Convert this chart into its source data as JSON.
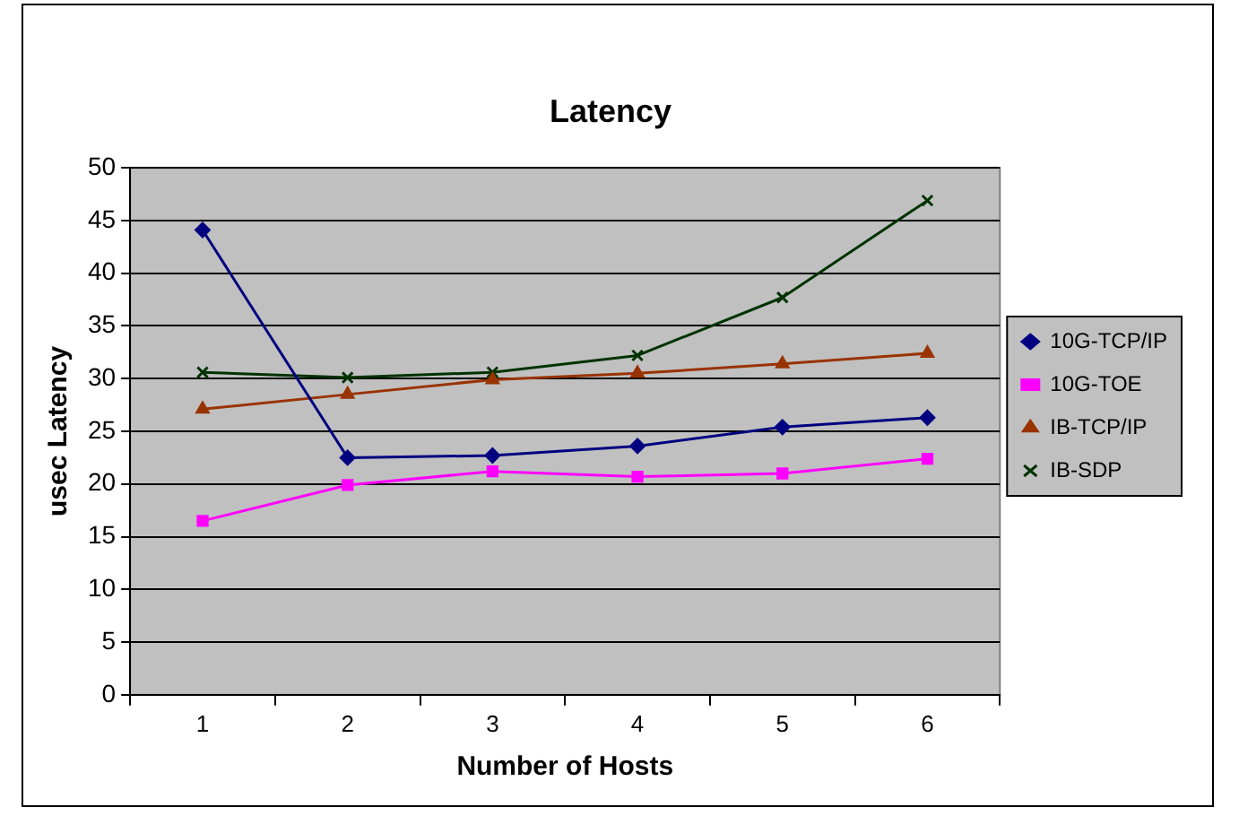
{
  "chart_data": {
    "type": "line",
    "title": "Latency",
    "xlabel": "Number of Hosts",
    "ylabel": "usec Latency",
    "categories": [
      "1",
      "2",
      "3",
      "4",
      "5",
      "6"
    ],
    "series": [
      {
        "name": "10G-TCP/IP",
        "color": "#000080",
        "marker": "diamond",
        "values": [
          44.1,
          22.5,
          22.7,
          23.6,
          25.4,
          26.3
        ]
      },
      {
        "name": "10G-TOE",
        "color": "#ff00ff",
        "marker": "square",
        "values": [
          16.5,
          19.9,
          21.2,
          20.7,
          21.0,
          22.4
        ]
      },
      {
        "name": "IB-TCP/IP",
        "color": "#993300",
        "marker": "triangle",
        "values": [
          27.1,
          28.5,
          29.9,
          30.5,
          31.4,
          32.4
        ]
      },
      {
        "name": "IB-SDP",
        "color": "#003300",
        "marker": "cross",
        "values": [
          30.6,
          30.1,
          30.6,
          32.2,
          37.7,
          46.9
        ]
      }
    ],
    "ylim": [
      0,
      50
    ],
    "yticks": [
      0,
      5,
      10,
      15,
      20,
      25,
      30,
      35,
      40,
      45,
      50
    ],
    "grid": "y",
    "legend": "right",
    "line_style": "solid"
  }
}
